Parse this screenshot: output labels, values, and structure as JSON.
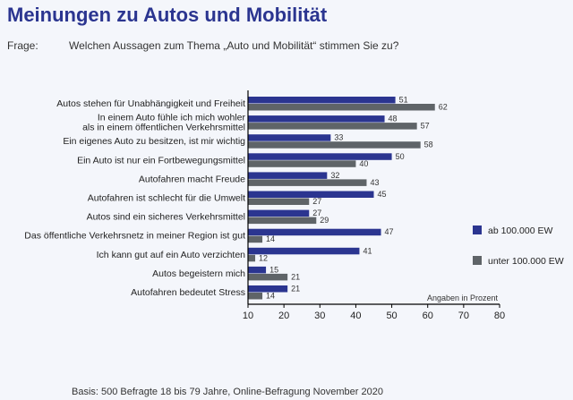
{
  "header": {
    "title": "Meinungen zu Autos und Mobilität",
    "question_label": "Frage:",
    "question_text": "Welchen Aussagen zum Thema „Auto und Mobilität“ stimmen Sie zu?"
  },
  "footer": {
    "basis": "Basis: 500 Befragte 18 bis 79 Jahre, Online-Befragung November 2020"
  },
  "chart_data": {
    "type": "bar",
    "orientation": "horizontal",
    "categories": [
      [
        "Autos stehen für Unabhängigkeit und Freiheit"
      ],
      [
        "In einem Auto fühle ich mich wohler",
        "als in einem öffentlichen Verkehrsmittel"
      ],
      [
        "Ein eigenes Auto zu besitzen, ist mir wichtig"
      ],
      [
        "Ein Auto ist nur ein Fortbewegungsmittel"
      ],
      [
        "Autofahren macht Freude"
      ],
      [
        "Autofahren ist schlecht für die Umwelt"
      ],
      [
        "Autos sind ein sicheres Verkehrsmittel"
      ],
      [
        "Das öffentliche Verkehrsnetz in meiner Region ist gut"
      ],
      [
        "Ich kann gut auf ein Auto verzichten"
      ],
      [
        "Autos begeistern mich"
      ],
      [
        "Autofahren bedeutet Stress"
      ]
    ],
    "series": [
      {
        "name": "ab 100.000 EW",
        "color": "#2b3590",
        "values": [
          51,
          48,
          33,
          50,
          32,
          45,
          27,
          47,
          41,
          15,
          21
        ]
      },
      {
        "name": "unter 100.000 EW",
        "color": "#5f6468",
        "values": [
          62,
          57,
          58,
          40,
          43,
          27,
          29,
          14,
          12,
          21,
          14
        ]
      }
    ],
    "xlim": [
      10,
      80
    ],
    "xticks": [
      10,
      20,
      30,
      40,
      50,
      60,
      70,
      80
    ],
    "unit_note": "Angaben in Prozent",
    "legend_position": "right"
  }
}
